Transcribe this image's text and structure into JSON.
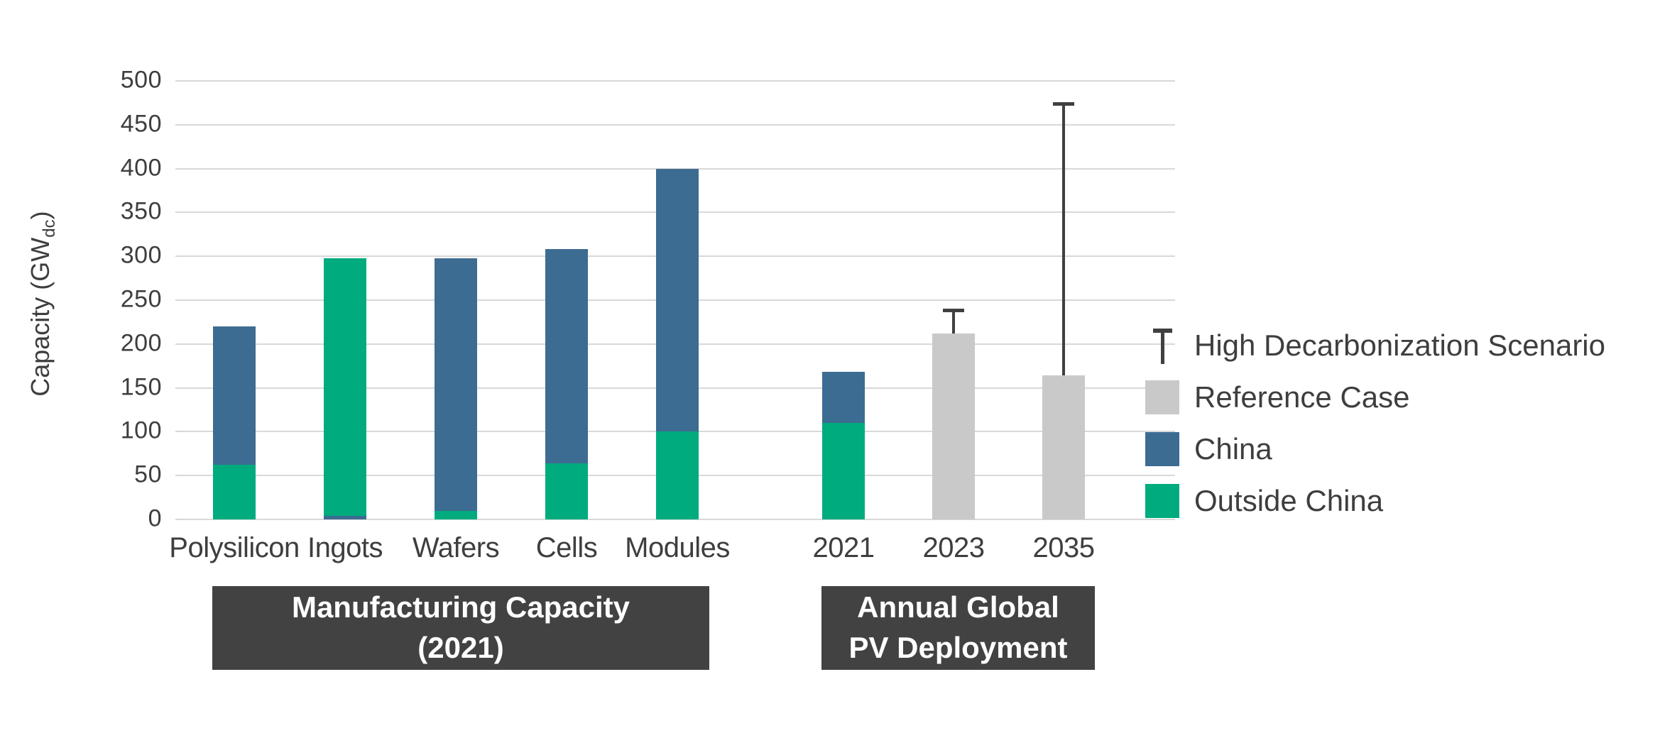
{
  "y_axis": {
    "title_main": "Capacity (GW",
    "title_sub": "dc",
    "title_close": ")",
    "ticks": [
      0,
      50,
      100,
      150,
      200,
      250,
      300,
      350,
      400,
      450,
      500
    ]
  },
  "legend": {
    "items": [
      {
        "label": "High Decarbonization Scenario",
        "swatch": "error-bar",
        "swatch_color": "#404040"
      },
      {
        "label": "Reference Case",
        "swatch": "square",
        "swatch_color": "#C9C9C9"
      },
      {
        "label": "China",
        "swatch": "square",
        "swatch_color": "#3D6C92"
      },
      {
        "label": "Outside China",
        "swatch": "square",
        "swatch_color": "#00AB7E"
      }
    ]
  },
  "colors": {
    "china": "#3D6C92",
    "outside_china": "#00AB7E",
    "reference_case": "#C9C9C9",
    "error_bar": "#404040",
    "gridline": "#D8D8D8",
    "group_box_bg": "#424242",
    "group_box_text": "#ffffff"
  },
  "groups": [
    {
      "line1": "Manufacturing Capacity",
      "line2": "(2021)"
    },
    {
      "line1": "Annual Global",
      "line2": "PV Deployment"
    }
  ],
  "chart_data": {
    "type": "bar",
    "stacked": true,
    "ylabel": "Capacity (GWdc)",
    "ylim": [
      0,
      500
    ],
    "grid": "horizontal",
    "legend_position": "right",
    "categories": [
      "Polysilicon",
      "Ingots",
      "Wafers",
      "Cells",
      "Modules",
      "2021",
      "2023",
      "2035"
    ],
    "bars": [
      {
        "category": "Polysilicon",
        "group": "Manufacturing Capacity (2021)",
        "total": 220,
        "segments": [
          {
            "series": "Outside China",
            "value": 62
          },
          {
            "series": "China",
            "value": 158
          }
        ]
      },
      {
        "category": "Ingots",
        "group": "Manufacturing Capacity (2021)",
        "total": 298,
        "segments": [
          {
            "series": "China",
            "value": 4
          },
          {
            "series": "Outside China",
            "value": 294
          }
        ]
      },
      {
        "category": "Wafers",
        "group": "Manufacturing Capacity (2021)",
        "total": 298,
        "segments": [
          {
            "series": "Outside China",
            "value": 10
          },
          {
            "series": "China",
            "value": 288
          }
        ]
      },
      {
        "category": "Cells",
        "group": "Manufacturing Capacity (2021)",
        "total": 308,
        "segments": [
          {
            "series": "Outside China",
            "value": 64
          },
          {
            "series": "China",
            "value": 244
          }
        ]
      },
      {
        "category": "Modules",
        "group": "Manufacturing Capacity (2021)",
        "total": 400,
        "segments": [
          {
            "series": "Outside China",
            "value": 100
          },
          {
            "series": "China",
            "value": 300
          }
        ]
      },
      {
        "category": "2021",
        "group": "Annual Global PV Deployment",
        "total": 168,
        "segments": [
          {
            "series": "Outside China",
            "value": 110
          },
          {
            "series": "China",
            "value": 58
          }
        ]
      },
      {
        "category": "2023",
        "group": "Annual Global PV Deployment",
        "total": 212,
        "segments": [
          {
            "series": "Reference Case",
            "value": 212
          }
        ],
        "error_bar": {
          "series": "High Decarbonization Scenario",
          "high": 240
        }
      },
      {
        "category": "2035",
        "group": "Annual Global PV Deployment",
        "total": 164,
        "segments": [
          {
            "series": "Reference Case",
            "value": 164
          }
        ],
        "error_bar": {
          "series": "High Decarbonization Scenario",
          "high": 476
        }
      }
    ]
  }
}
